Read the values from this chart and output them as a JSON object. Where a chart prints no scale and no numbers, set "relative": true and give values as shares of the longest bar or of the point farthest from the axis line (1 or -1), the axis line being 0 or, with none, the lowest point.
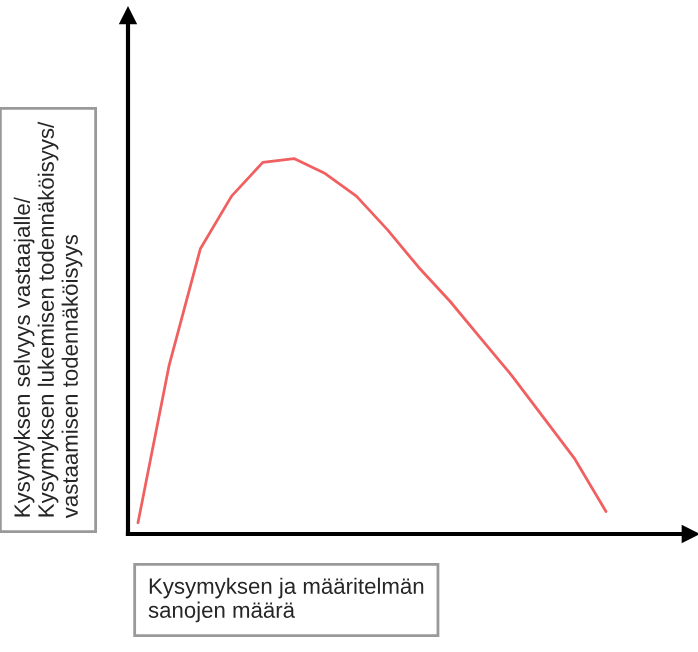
{
  "chart_data": {
    "type": "line",
    "relative": true,
    "xlabel": "Kysymyksen ja määritelmän\nsanojen määrä",
    "ylabel": "Kysymyksen selvyys vastaajalle/\nKysymyksen lukemisen todennäköisyys/\nvastaamisen todennäköisyys",
    "categories": [
      null,
      null,
      null,
      null,
      null,
      null,
      null,
      null,
      null,
      null,
      null,
      null,
      null,
      null,
      null,
      null
    ],
    "series": [
      {
        "color": "#f06060",
        "values": [
          0.03,
          0.45,
          0.76,
          0.9,
          0.99,
          1.0,
          0.96,
          0.9,
          0.81,
          0.71,
          0.62,
          0.52,
          0.42,
          0.31,
          0.2,
          0.06
        ]
      }
    ],
    "marker": "none",
    "line_style": "solid"
  }
}
